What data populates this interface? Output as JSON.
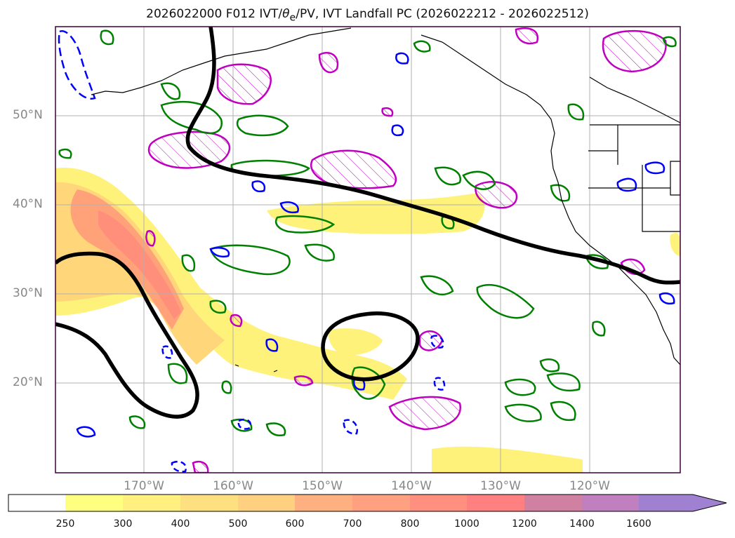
{
  "figure": {
    "title_pre": "2026022000 F012 IVT/",
    "title_theta": "θ",
    "title_sub": "e",
    "title_post": "/PV, IVT Landfall PC (2026022212 - 2026022512)"
  },
  "map": {
    "lat_labels": [
      "50°N",
      "40°N",
      "30°N",
      "20°N"
    ],
    "lon_labels": [
      "170°W",
      "160°W",
      "150°W",
      "140°W",
      "130°W",
      "120°W"
    ],
    "region": "North Pacific / US West Coast",
    "colors": {
      "coastline": "#000000",
      "ivt_contour": "#000000",
      "pv_positive": "#008000",
      "pv_negative": "#0000ff",
      "theta_e": "#c000c0",
      "gridline": "#b0b0b0"
    }
  },
  "colorbar": {
    "labels": [
      "250",
      "300",
      "400",
      "500",
      "600",
      "700",
      "800",
      "1000",
      "1200",
      "1400",
      "1600"
    ],
    "colors": [
      "#ffffff",
      "#ffff80",
      "#fff080",
      "#ffe080",
      "#ffd080",
      "#ffb080",
      "#ffa080",
      "#ff9080",
      "#ff8080",
      "#d080a0",
      "#c080c0",
      "#a080d0"
    ],
    "extend": "max"
  }
}
